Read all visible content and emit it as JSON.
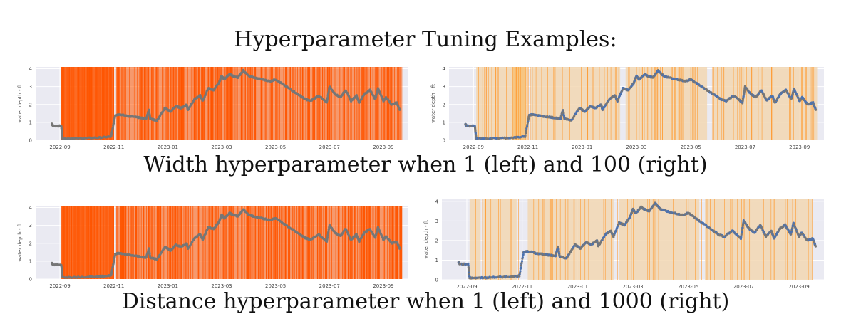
{
  "title": "Hyperparameter Tuning Examples:",
  "captions": [
    "Width hyperparameter when 1 (left) and 100 (right)",
    "Distance hyperparameter when 1 (left) and 1000 (right)"
  ],
  "colors": {
    "plot_bg": "#eaeaf2",
    "grid": "#ffffff",
    "series": "#4c72b0",
    "series_gray": "#777777",
    "highlight_dense": "#ff5500",
    "highlight_band": "#f2d7b3",
    "highlight_band_strong": "#f7c27a",
    "highlight_line": "#ff9a2e"
  },
  "chart_data": [
    {
      "type": "scatter",
      "panel": "width=1",
      "ylabel": "water depth - ft",
      "y_ticks": [
        "0",
        "1",
        "2",
        "3",
        "4"
      ],
      "x_ticks": [
        "2022-09",
        "2022-11",
        "2023-01",
        "2023-03",
        "2023-05",
        "2023-07",
        "2023-09"
      ],
      "x_tick_months": [
        0,
        2,
        4,
        6,
        8,
        10,
        12
      ],
      "ylim": [
        0,
        4.1
      ],
      "xlim_months": [
        -0.9,
        12.9
      ],
      "highlight_style": "dense"
    },
    {
      "type": "scatter",
      "panel": "width=100",
      "ylabel": "water depth - ft",
      "y_ticks": [
        "0",
        "1",
        "2",
        "3",
        "4"
      ],
      "x_ticks": [
        "2022-09",
        "2022-11",
        "2023-01",
        "2023-03",
        "2023-05",
        "2023-07",
        "2023-09"
      ],
      "x_tick_months": [
        0,
        2,
        4,
        6,
        8,
        10,
        12
      ],
      "ylim": [
        0,
        4.1
      ],
      "xlim_months": [
        -0.9,
        12.9
      ],
      "highlight_style": "bands"
    },
    {
      "type": "scatter",
      "panel": "distance=1",
      "ylabel": "water depth - ft",
      "y_ticks": [
        "0",
        "1",
        "2",
        "3",
        "4"
      ],
      "x_ticks": [
        "2022-09",
        "2022-11",
        "2023-01",
        "2023-03",
        "2023-05",
        "2023-07",
        "2023-09"
      ],
      "x_tick_months": [
        0,
        2,
        4,
        6,
        8,
        10,
        12
      ],
      "ylim": [
        0,
        4.1
      ],
      "xlim_months": [
        -0.9,
        12.9
      ],
      "highlight_style": "dense"
    },
    {
      "type": "scatter",
      "panel": "distance=1000",
      "ylabel": "water depth - ft",
      "y_ticks": [
        "0",
        "1",
        "2",
        "3",
        "4"
      ],
      "x_ticks": [
        "2022-09",
        "2022-11",
        "2023-01",
        "2023-03",
        "2023-05",
        "2023-07",
        "2023-09"
      ],
      "x_tick_months": [
        0,
        2,
        4,
        6,
        8,
        10,
        12
      ],
      "ylim": [
        0,
        4.1
      ],
      "xlim_months": [
        -0.9,
        12.9
      ],
      "highlight_style": "sparse"
    }
  ],
  "series": {
    "months": [
      -0.3,
      -0.25,
      0.05,
      0.1,
      0.5,
      1.0,
      1.5,
      1.9,
      2.05,
      2.2,
      2.5,
      2.8,
      3.0,
      3.2,
      3.3,
      3.35,
      3.6,
      3.9,
      4.0,
      4.1,
      4.3,
      4.5,
      4.7,
      4.75,
      5.0,
      5.2,
      5.3,
      5.5,
      5.7,
      5.9,
      6.0,
      6.1,
      6.3,
      6.4,
      6.6,
      6.8,
      7.0,
      7.2,
      7.5,
      7.8,
      8.0,
      8.3,
      8.6,
      8.9,
      9.1,
      9.3,
      9.6,
      9.9,
      10.0,
      10.2,
      10.4,
      10.6,
      10.8,
      11.0,
      11.1,
      11.3,
      11.5,
      11.7,
      11.8,
      12.0,
      12.1,
      12.3,
      12.5,
      12.6
    ],
    "depth": [
      0.9,
      0.8,
      0.8,
      0.1,
      0.1,
      0.12,
      0.15,
      0.2,
      1.4,
      1.45,
      1.35,
      1.3,
      1.25,
      1.2,
      1.7,
      1.2,
      1.1,
      1.8,
      1.7,
      1.6,
      1.9,
      1.8,
      2.0,
      1.7,
      2.3,
      2.5,
      2.2,
      2.9,
      2.8,
      3.2,
      3.6,
      3.4,
      3.7,
      3.6,
      3.5,
      3.9,
      3.6,
      3.5,
      3.4,
      3.3,
      3.4,
      3.1,
      2.8,
      2.5,
      2.3,
      2.2,
      2.5,
      2.1,
      3.0,
      2.6,
      2.4,
      2.8,
      2.2,
      2.5,
      2.1,
      2.6,
      2.8,
      2.3,
      2.9,
      2.2,
      2.4,
      2.0,
      2.1,
      1.7
    ]
  }
}
